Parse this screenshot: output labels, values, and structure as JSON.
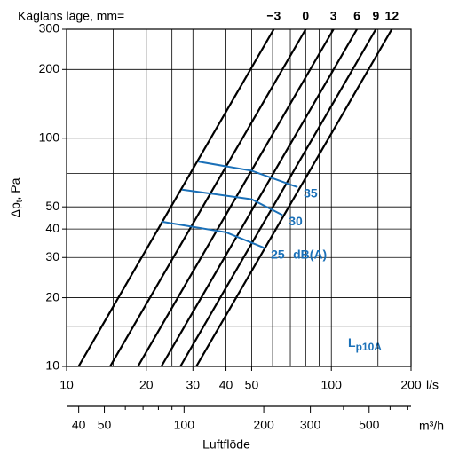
{
  "chart_data": {
    "type": "line",
    "title": "Käglans läge, mm=",
    "xlabel": "Luftflöde",
    "ylabel": {
      "main": "Δp",
      "sub": "t",
      "rest": ", Pa"
    },
    "log": true,
    "xlim": [
      10,
      200
    ],
    "ylim": [
      10,
      300
    ],
    "xticks": [
      10,
      20,
      30,
      40,
      50,
      100,
      200
    ],
    "yticks": [
      10,
      20,
      30,
      40,
      50,
      100,
      200,
      300
    ],
    "xgrid": [
      15,
      20,
      25,
      30,
      40,
      50,
      60,
      70,
      80,
      90,
      100,
      150
    ],
    "ygrid": [
      15,
      20,
      30,
      40,
      50,
      70,
      100,
      150,
      200
    ],
    "x_unit": "l/s",
    "x2lim": [
      36,
      720
    ],
    "x2ticks": [
      40,
      50,
      100,
      200,
      300,
      500
    ],
    "x2minor": [
      60,
      70,
      80,
      90,
      400,
      600,
      700
    ],
    "x2_unit": "m³/h",
    "series": [
      {
        "name": "−3",
        "color": "#000000",
        "x": [
          11.1,
          60.6
        ],
        "values": [
          10,
          300
        ]
      },
      {
        "name": "0",
        "color": "#000000",
        "x": [
          14.6,
          80.0
        ],
        "values": [
          10,
          300
        ]
      },
      {
        "name": "3",
        "color": "#000000",
        "x": [
          18.6,
          101.9
        ],
        "values": [
          10,
          300
        ]
      },
      {
        "name": "6",
        "color": "#000000",
        "x": [
          22.8,
          124.9
        ],
        "values": [
          10,
          300
        ]
      },
      {
        "name": "9",
        "color": "#000000",
        "x": [
          26.9,
          147.3
        ],
        "values": [
          10,
          300
        ]
      },
      {
        "name": "12",
        "color": "#000000",
        "x": [
          30.9,
          169.2
        ],
        "values": [
          10,
          300
        ]
      }
    ],
    "sound_series": [
      {
        "name": "35",
        "color": "#1a70b8",
        "x": [
          31.4,
          50,
          74.5
        ],
        "values": [
          79,
          72,
          61
        ]
      },
      {
        "name": "30",
        "color": "#1a70b8",
        "x": [
          27.3,
          50,
          65.4
        ],
        "values": [
          59.5,
          54,
          46
        ]
      },
      {
        "name": "25",
        "color": "#1a70b8",
        "x": [
          23.0,
          40,
          56.0
        ],
        "values": [
          43,
          38.7,
          33
        ]
      }
    ],
    "sound_unit": "dB(A)",
    "annotation": {
      "main": "L",
      "sub": "p10A"
    }
  }
}
